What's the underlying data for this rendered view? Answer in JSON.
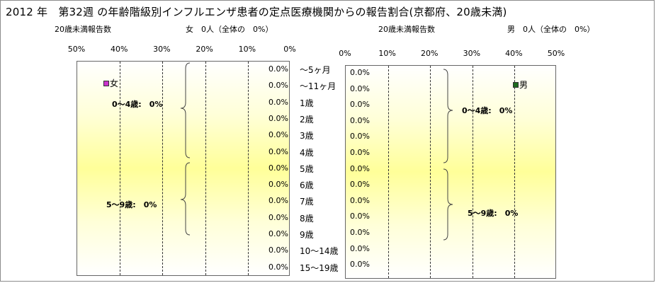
{
  "title": "2012 年　第32週 の年齢階級別インフルエンザ患者の定点医療機関からの報告割合(京都府、20歳未満)",
  "female": {
    "count_label": "20歳未満報告数",
    "summary": "女　0人（全体の　0%）",
    "legend": "女",
    "legend_color": "#cc33cc",
    "group1": "0〜4歳:　0%",
    "group2": "5〜9歳:　0%"
  },
  "male": {
    "count_label": "20歳未満報告数",
    "summary": "男　0人（全体の　0%）",
    "legend": "男",
    "legend_color": "#1e6b1e",
    "group1": "0〜4歳:　0%",
    "group2": "5〜9歳:　0%"
  },
  "chart_data": [
    {
      "type": "bar",
      "orientation": "horizontal",
      "direction": "right-to-left",
      "series": [
        {
          "name": "女",
          "values": [
            0,
            0,
            0,
            0,
            0,
            0,
            0,
            0,
            0,
            0,
            0,
            0,
            0
          ]
        }
      ],
      "value_labels": [
        "0.0%",
        "0.0%",
        "0.0%",
        "0.0%",
        "0.0%",
        "0.0%",
        "0.0%",
        "0.0%",
        "0.0%",
        "0.0%",
        "0.0%",
        "0.0%",
        "0.0%"
      ],
      "categories": [
        "〜5ヶ月",
        "〜11ヶ月",
        "1歳",
        "2歳",
        "3歳",
        "4歳",
        "5歳",
        "6歳",
        "7歳",
        "8歳",
        "9歳",
        "10〜14歳",
        "15〜19歳"
      ],
      "xticks": [
        "50%",
        "40%",
        "30%",
        "20%",
        "10%",
        "0%"
      ],
      "xlim": [
        0,
        50
      ],
      "unit": "%"
    },
    {
      "type": "bar",
      "orientation": "horizontal",
      "direction": "left-to-right",
      "series": [
        {
          "name": "男",
          "values": [
            0,
            0,
            0,
            0,
            0,
            0,
            0,
            0,
            0,
            0,
            0,
            0,
            0
          ]
        }
      ],
      "value_labels": [
        "0.0%",
        "0.0%",
        "0.0%",
        "0.0%",
        "0.0%",
        "0.0%",
        "0.0%",
        "0.0%",
        "0.0%",
        "0.0%",
        "0.0%",
        "0.0%",
        "0.0%"
      ],
      "xticks": [
        "0%",
        "10%",
        "20%",
        "30%",
        "40%",
        "50%"
      ],
      "xlim": [
        0,
        50
      ],
      "unit": "%"
    }
  ]
}
